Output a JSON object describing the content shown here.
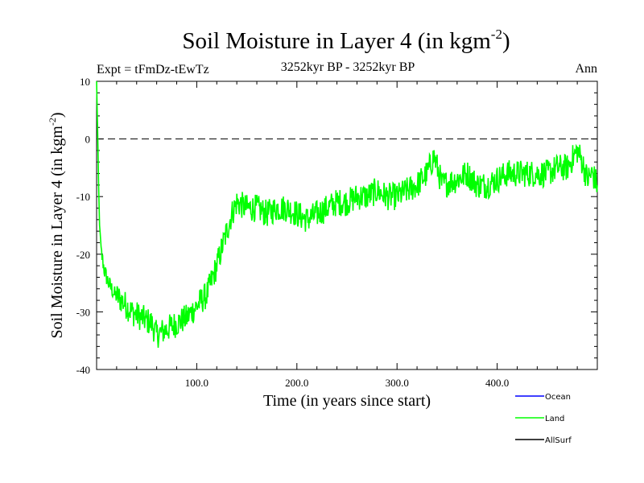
{
  "chart_data": {
    "type": "line",
    "title_main": "Soil Moisture in Layer 4 (in kgm",
    "title_sup": "-2",
    "title_close": ")",
    "subtitle_left": "Expt = tFmDz-tEwTz",
    "subtitle_center": "3252kyr BP - 3252kyr BP",
    "subtitle_right": "Ann",
    "xlabel": "Time (in years since start)",
    "ylabel_main": "Soil Moisture in Layer 4 (in kgm",
    "ylabel_sup": "-2",
    "ylabel_close": ")",
    "xlim": [
      0,
      500
    ],
    "ylim": [
      -40,
      10
    ],
    "x_ticks": [
      100,
      200,
      300,
      400
    ],
    "x_tick_labels": [
      "100.0",
      "200.0",
      "300.0",
      "400.0"
    ],
    "y_ticks": [
      -40,
      -30,
      -20,
      -10,
      0,
      10
    ],
    "y_tick_labels": [
      "-40",
      "-30",
      "-20",
      "-10",
      "0",
      "10"
    ],
    "reference_line": 0,
    "legend": [
      {
        "name": "Ocean",
        "color": "#0000ff"
      },
      {
        "name": "Land",
        "color": "#00ff00"
      },
      {
        "name": "AllSurf",
        "color": "#000000"
      }
    ],
    "series": [
      {
        "name": "Land",
        "color": "#00ff00",
        "x": [
          0,
          1,
          2,
          3,
          5,
          8,
          12,
          18,
          25,
          35,
          45,
          55,
          60,
          70,
          80,
          90,
          100,
          110,
          120,
          125,
          130,
          135,
          140,
          150,
          160,
          170,
          180,
          190,
          200,
          210,
          220,
          230,
          240,
          250,
          260,
          270,
          280,
          290,
          300,
          310,
          320,
          330,
          337,
          345,
          360,
          370,
          380,
          390,
          400,
          410,
          420,
          430,
          440,
          450,
          460,
          470,
          480,
          485,
          490,
          495,
          500
        ],
        "y": [
          10,
          2,
          -8,
          -15,
          -20,
          -23,
          -25,
          -27,
          -28,
          -30,
          -31,
          -32,
          -34,
          -33,
          -32,
          -31,
          -29,
          -27,
          -22,
          -19,
          -16,
          -13,
          -11,
          -12,
          -12,
          -13,
          -12,
          -12,
          -13,
          -14,
          -13,
          -12,
          -11,
          -11,
          -10,
          -10,
          -9,
          -10,
          -10,
          -9,
          -8,
          -6,
          -3,
          -8,
          -7,
          -6,
          -8,
          -8,
          -7,
          -6,
          -6,
          -6,
          -6,
          -6,
          -5,
          -5,
          -2,
          -4,
          -7,
          -6,
          -8
        ]
      }
    ]
  }
}
